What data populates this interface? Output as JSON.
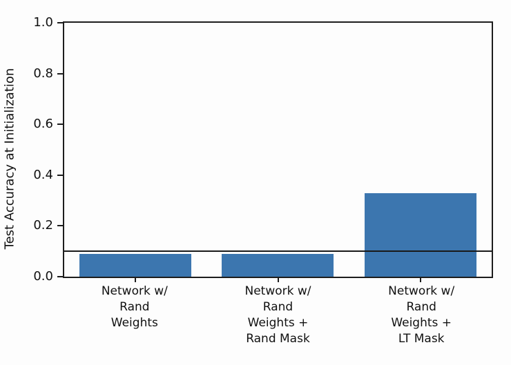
{
  "chart_data": {
    "type": "bar",
    "title": "",
    "xlabel": "",
    "ylabel": "Test Accuracy at Initialization",
    "categories": [
      "Network w/\nRand\nWeights",
      "Network w/\nRand\nWeights +\nRand Mask",
      "Network w/\nRand\nWeights +\nLT Mask"
    ],
    "values": [
      0.09,
      0.09,
      0.33
    ],
    "reference_line": 0.1,
    "ylim": [
      0.0,
      1.0
    ],
    "yticks": [
      0.0,
      0.2,
      0.4,
      0.6,
      0.8,
      1.0
    ],
    "grid": false,
    "legend": null,
    "bar_color": "#3c76af",
    "line_color": "#191919",
    "frame_color": "#1c1c1c"
  }
}
